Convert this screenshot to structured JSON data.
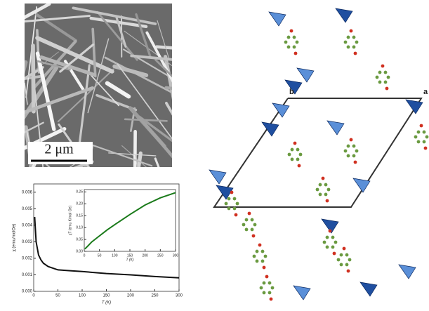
{
  "sem_image": {
    "scale_bar": "2 μm"
  },
  "structure": {
    "axis_labels": [
      "b",
      "a"
    ]
  },
  "chart_data": [
    {
      "type": "line",
      "x_label": "T (K)",
      "y_label": "χ (emu/molOe)",
      "x": [
        2,
        5,
        10,
        15,
        20,
        30,
        40,
        50,
        75,
        100,
        150,
        200,
        250,
        300
      ],
      "values": [
        0.0045,
        0.003,
        0.0022,
        0.0019,
        0.0017,
        0.0015,
        0.0014,
        0.0013,
        0.00125,
        0.0012,
        0.00108,
        0.001,
        0.0009,
        0.00082
      ],
      "color": "#111111",
      "xlim": [
        0,
        300
      ],
      "xticks": [
        0,
        50,
        100,
        150,
        200,
        250,
        300
      ],
      "ylim": [
        0,
        0.0065
      ],
      "yticks": [
        {
          "value": 0,
          "label": "0.000"
        },
        {
          "value": 0.001,
          "label": "0.001"
        },
        {
          "value": 0.002,
          "label": "0.002"
        },
        {
          "value": 0.003,
          "label": "0.003"
        },
        {
          "value": 0.004,
          "label": "0.004"
        },
        {
          "value": 0.005,
          "label": "0.005"
        },
        {
          "value": 0.006,
          "label": "0.006"
        }
      ]
    },
    {
      "type": "line",
      "x_label": "T (K)",
      "y_label": "χT (emu K/mol Oe)",
      "x": [
        2,
        10,
        25,
        50,
        75,
        100,
        150,
        200,
        250,
        300
      ],
      "values": [
        0.01,
        0.02,
        0.04,
        0.065,
        0.09,
        0.112,
        0.155,
        0.195,
        0.225,
        0.247
      ],
      "color": "#1a7a1a",
      "xlim": [
        0,
        300
      ],
      "xticks": [
        0,
        50,
        100,
        150,
        200,
        250,
        300
      ],
      "ylim": [
        0,
        0.26
      ],
      "yticks": [
        {
          "value": 0,
          "label": "0.00"
        },
        {
          "value": 0.05,
          "label": "0.05"
        },
        {
          "value": 0.1,
          "label": "0.10"
        },
        {
          "value": 0.15,
          "label": "0.15"
        },
        {
          "value": 0.2,
          "label": "0.20"
        },
        {
          "value": 0.25,
          "label": "0.25"
        }
      ]
    }
  ]
}
